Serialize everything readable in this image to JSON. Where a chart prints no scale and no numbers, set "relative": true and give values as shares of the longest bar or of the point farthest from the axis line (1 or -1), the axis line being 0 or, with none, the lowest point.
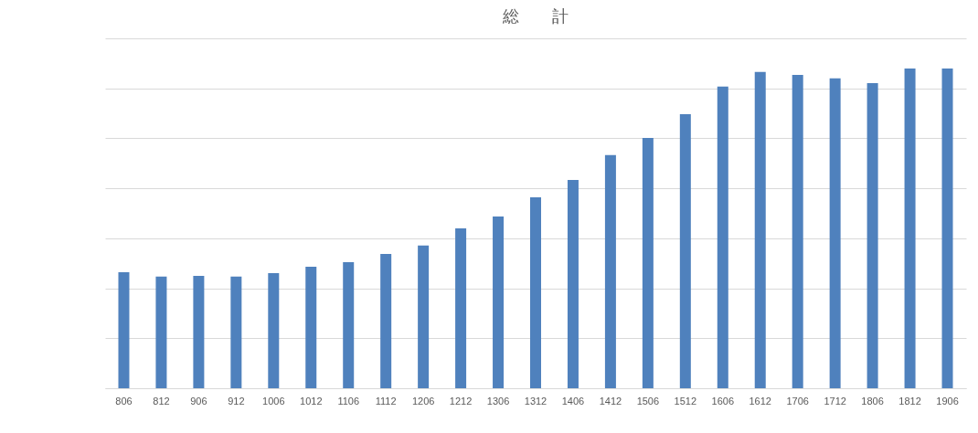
{
  "chart_data": {
    "type": "bar",
    "title": "総　　計",
    "relative": true,
    "grid": "y",
    "legend": false,
    "categories": [
      "806",
      "812",
      "906",
      "912",
      "1006",
      "1012",
      "1106",
      "1112",
      "1206",
      "1212",
      "1306",
      "1312",
      "1406",
      "1412",
      "1506",
      "1512",
      "1606",
      "1612",
      "1706",
      "1712",
      "1806",
      "1812",
      "1906"
    ],
    "series": [
      {
        "color": "#4f81bd",
        "values": [
          0.363,
          0.349,
          0.351,
          0.349,
          0.36,
          0.38,
          0.394,
          0.42,
          0.446,
          0.5,
          0.537,
          0.597,
          0.651,
          0.729,
          0.783,
          0.857,
          0.943,
          0.989,
          0.98,
          0.969,
          0.954,
          1,
          1
        ]
      }
    ]
  }
}
